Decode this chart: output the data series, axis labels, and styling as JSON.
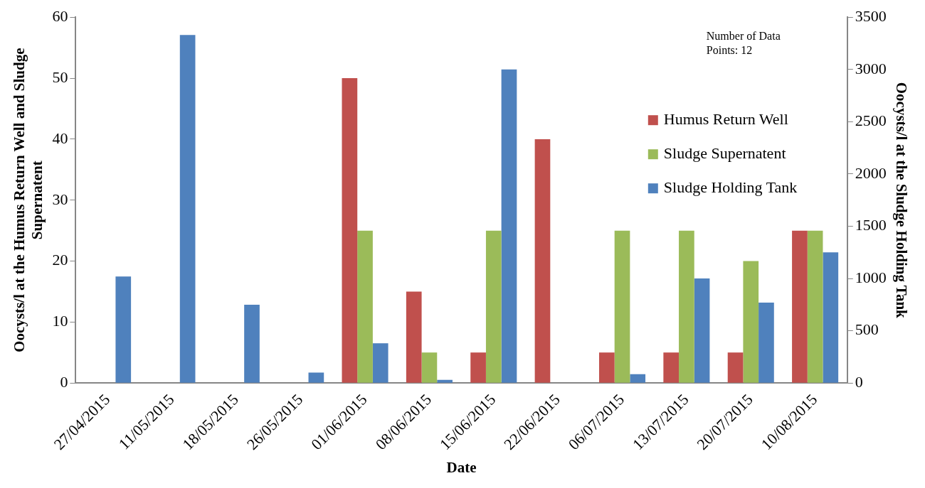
{
  "chart_data": {
    "type": "bar",
    "xlabel": "Date",
    "ylabel": "Oocysts/l at the Humus Return Well and Sludge Supernatent",
    "y2label": "Oocysts/l at the Sludge Holding Tank",
    "categories": [
      "27/04/2015",
      "11/05/2015",
      "18/05/2015",
      "26/05/2015",
      "01/06/2015",
      "08/06/2015",
      "15/06/2015",
      "22/06/2015",
      "06/07/2015",
      "13/07/2015",
      "20/07/2015",
      "10/08/2015"
    ],
    "series": [
      {
        "name": "Humus Return Well",
        "color": "#c0504d",
        "values": [
          null,
          null,
          null,
          null,
          50,
          15,
          5,
          40,
          5,
          5,
          5,
          25
        ]
      },
      {
        "name": "Sludge Supernatent",
        "color": "#9bbb59",
        "values": [
          null,
          null,
          null,
          null,
          25,
          5,
          25,
          null,
          25,
          25,
          20,
          25
        ]
      },
      {
        "name": "Sludge Holding Tank",
        "color": "#4f81bd",
        "axis": "y2",
        "values": [
          1020,
          3330,
          750,
          100,
          380,
          30,
          3000,
          null,
          85,
          1000,
          770,
          1250
        ]
      }
    ],
    "ylim": [
      0,
      60
    ],
    "yticks": [
      0,
      10,
      20,
      30,
      40,
      50,
      60
    ],
    "y2lim": [
      0,
      3500
    ],
    "y2ticks": [
      0,
      500,
      1000,
      1500,
      2000,
      2500,
      3000,
      3500
    ],
    "legend": "right",
    "grid": false,
    "annotations": [
      "Number of Data Points: 12"
    ]
  }
}
